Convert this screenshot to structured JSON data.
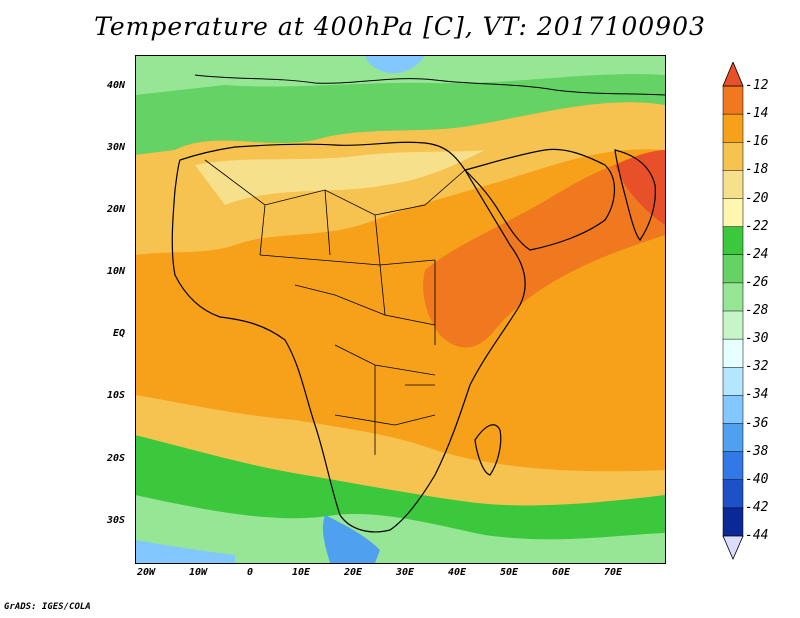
{
  "title": "Temperature at 400hPa [C], VT: 2017100903",
  "footer": "GrADS: IGES/COLA",
  "y_axis_labels": [
    "40N",
    "30N",
    "20N",
    "10N",
    "EQ",
    "10S",
    "20S",
    "30S"
  ],
  "x_axis_labels": [
    "20W",
    "10W",
    "0",
    "10E",
    "20E",
    "30E",
    "40E",
    "50E",
    "60E",
    "70E"
  ],
  "colorbar": {
    "labels": [
      "-12",
      "-14",
      "-16",
      "-18",
      "-20",
      "-22",
      "-24",
      "-26",
      "-28",
      "-30",
      "-32",
      "-34",
      "-36",
      "-38",
      "-40",
      "-42",
      "-44"
    ],
    "colors": [
      "#e8502a",
      "#f0781e",
      "#f7a11a",
      "#f7c350",
      "#f7e08c",
      "#fff6b0",
      "#3cc83c",
      "#64d264",
      "#96e696",
      "#c8f5c8",
      "#e6ffff",
      "#b4e6ff",
      "#82c8ff",
      "#50a0f0",
      "#3278e6",
      "#1e50c8",
      "#0a2896",
      "#050a5a"
    ],
    "upper_triangle_color": "#e8502a",
    "lower_triangle_color": "#dcdcff"
  },
  "colors": {
    "ocean_warm": "#f7a11a",
    "ocean_hot": "#f0781e",
    "sahara": "#f7c350",
    "north_green": "#64d264",
    "south_green": "#3cc83c",
    "cold_blue": "#50a0f0"
  }
}
